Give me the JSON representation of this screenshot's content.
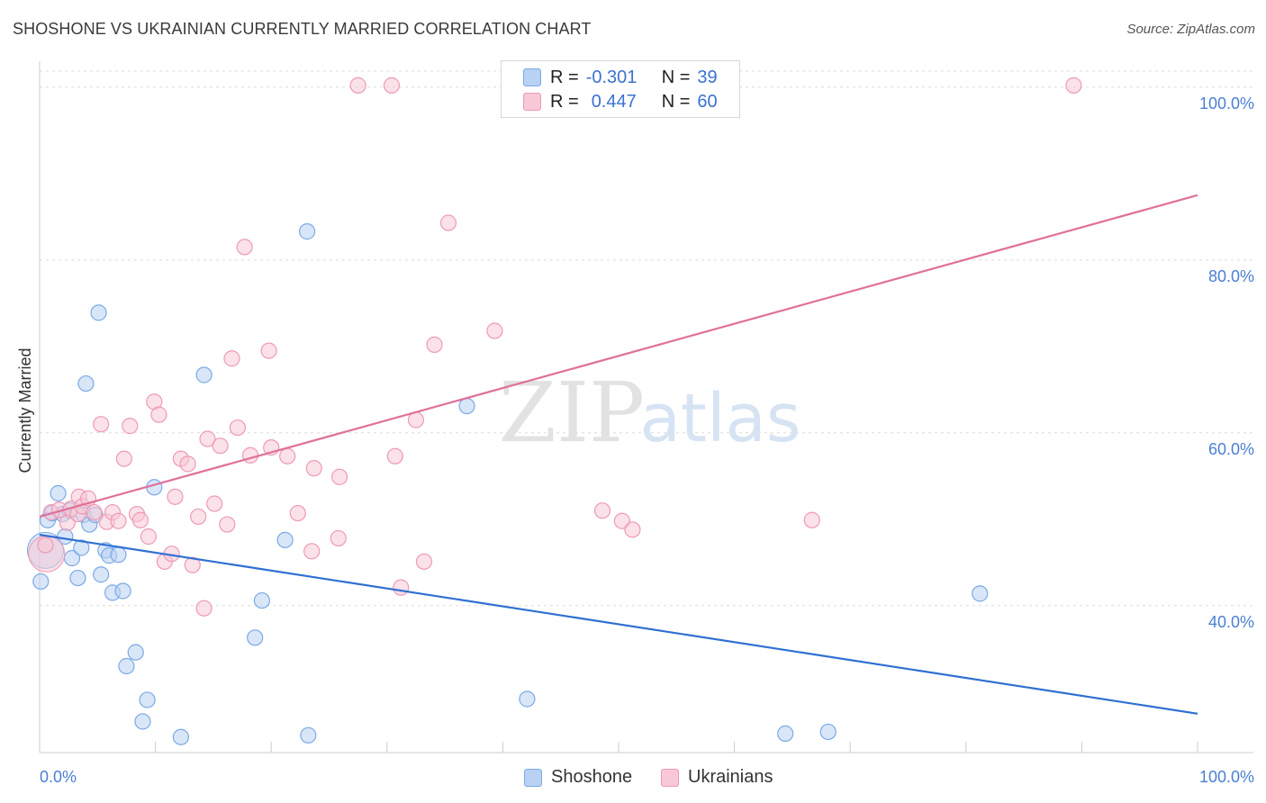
{
  "chart_data": {
    "type": "scatter",
    "title": "SHOSHONE VS UKRAINIAN CURRENTLY MARRIED CORRELATION CHART",
    "source": "Source: ZipAtlas.com",
    "ylabel": "Currently Married",
    "xlim": [
      0,
      100
    ],
    "ylim": [
      23,
      103
    ],
    "x_tick_labels": [
      "0.0%",
      "100.0%"
    ],
    "y_ticks": [
      {
        "value": 40,
        "label": "40.0%"
      },
      {
        "value": 60,
        "label": "60.0%"
      },
      {
        "value": 80,
        "label": "80.0%"
      },
      {
        "value": 100,
        "label": "100.0%"
      }
    ],
    "watermark": {
      "zip": "ZIP",
      "atlas": "atlas"
    },
    "series": [
      {
        "name": "Shoshone",
        "color": "#7aaae6",
        "fill": "#b9d1f3",
        "line_color": "#2e6fd2",
        "R": "-0.301",
        "N": "39",
        "trend": {
          "x0": 0,
          "y0": 48.2,
          "x1": 100,
          "y1": 27.5
        },
        "points": [
          [
            0.1,
            42.8
          ],
          [
            0.7,
            49.9
          ],
          [
            1.1,
            50.7
          ],
          [
            1.6,
            53.0
          ],
          [
            2.0,
            50.6
          ],
          [
            2.2,
            48.0
          ],
          [
            2.6,
            51.0
          ],
          [
            2.8,
            45.5
          ],
          [
            3.3,
            43.2
          ],
          [
            3.6,
            46.7
          ],
          [
            3.8,
            50.5
          ],
          [
            4.0,
            65.7
          ],
          [
            4.3,
            49.4
          ],
          [
            4.8,
            50.5
          ],
          [
            5.1,
            73.9
          ],
          [
            5.3,
            43.6
          ],
          [
            5.7,
            46.4
          ],
          [
            6.0,
            45.8
          ],
          [
            6.3,
            41.5
          ],
          [
            6.8,
            45.9
          ],
          [
            7.2,
            41.7
          ],
          [
            7.5,
            33.0
          ],
          [
            8.3,
            34.6
          ],
          [
            8.9,
            26.6
          ],
          [
            9.3,
            29.1
          ],
          [
            9.9,
            53.7
          ],
          [
            12.2,
            24.8
          ],
          [
            14.2,
            66.7
          ],
          [
            18.6,
            36.3
          ],
          [
            19.2,
            40.6
          ],
          [
            21.2,
            47.6
          ],
          [
            23.1,
            83.3
          ],
          [
            23.2,
            25.0
          ],
          [
            36.9,
            63.1
          ],
          [
            42.1,
            29.2
          ],
          [
            64.4,
            25.2
          ],
          [
            68.1,
            25.4
          ],
          [
            81.2,
            41.4
          ]
        ],
        "big_point": [
          0.5,
          46.4
        ]
      },
      {
        "name": "Ukrainians",
        "color": "#ee9ab5",
        "fill": "#f8c8d6",
        "line_color": "#e0709a",
        "R": "0.447",
        "N": "60",
        "trend": {
          "x0": 0,
          "y0": 50.3,
          "x1": 100,
          "y1": 87.5
        },
        "points": [
          [
            0.5,
            47.0
          ],
          [
            1.0,
            50.8
          ],
          [
            1.7,
            51.1
          ],
          [
            2.4,
            49.6
          ],
          [
            2.7,
            51.2
          ],
          [
            3.3,
            50.6
          ],
          [
            3.4,
            52.6
          ],
          [
            3.7,
            51.5
          ],
          [
            4.2,
            52.4
          ],
          [
            4.7,
            50.8
          ],
          [
            5.3,
            61.0
          ],
          [
            5.8,
            49.7
          ],
          [
            6.3,
            50.8
          ],
          [
            6.8,
            49.8
          ],
          [
            7.3,
            57.0
          ],
          [
            7.8,
            60.8
          ],
          [
            8.4,
            50.6
          ],
          [
            8.7,
            49.9
          ],
          [
            9.4,
            48.0
          ],
          [
            9.9,
            63.6
          ],
          [
            10.3,
            62.1
          ],
          [
            10.8,
            45.1
          ],
          [
            11.4,
            46.0
          ],
          [
            11.7,
            52.6
          ],
          [
            12.2,
            57.0
          ],
          [
            12.8,
            56.4
          ],
          [
            13.2,
            44.7
          ],
          [
            13.7,
            50.3
          ],
          [
            14.2,
            39.7
          ],
          [
            14.5,
            59.3
          ],
          [
            15.1,
            51.8
          ],
          [
            15.6,
            58.5
          ],
          [
            16.2,
            49.4
          ],
          [
            16.6,
            68.6
          ],
          [
            17.1,
            60.6
          ],
          [
            17.7,
            81.5
          ],
          [
            18.2,
            57.4
          ],
          [
            19.8,
            69.5
          ],
          [
            20.0,
            58.3
          ],
          [
            21.4,
            57.3
          ],
          [
            22.3,
            50.7
          ],
          [
            23.5,
            46.3
          ],
          [
            23.7,
            55.9
          ],
          [
            25.8,
            47.8
          ],
          [
            25.9,
            54.9
          ],
          [
            27.5,
            100.2
          ],
          [
            30.4,
            100.2
          ],
          [
            30.7,
            57.3
          ],
          [
            31.2,
            42.1
          ],
          [
            32.5,
            61.5
          ],
          [
            33.2,
            45.1
          ],
          [
            34.1,
            70.2
          ],
          [
            35.3,
            84.3
          ],
          [
            39.3,
            71.8
          ],
          [
            48.6,
            51.0
          ],
          [
            50.3,
            49.8
          ],
          [
            51.2,
            48.8
          ],
          [
            66.7,
            49.9
          ],
          [
            89.3,
            100.2
          ]
        ],
        "big_point": [
          0.6,
          46.0
        ]
      }
    ]
  },
  "legend": {
    "r_label": "R =",
    "n_label": "N =",
    "shoshone_r": "-0.301",
    "shoshone_n": "39",
    "ukrainians_r": "0.447",
    "ukrainians_n": "60"
  },
  "bottom_legend": {
    "shoshone": "Shoshone",
    "ukrainians": "Ukrainians"
  }
}
